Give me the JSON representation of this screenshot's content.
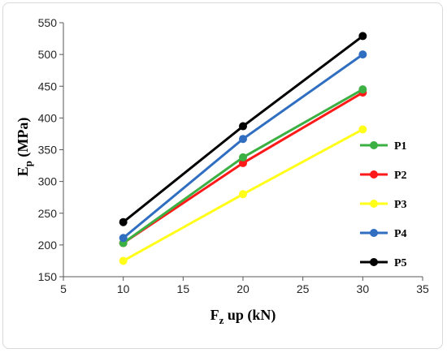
{
  "chart_data": {
    "type": "line",
    "x": [
      10,
      20,
      30
    ],
    "xlabel": {
      "main": "F",
      "sub": "z",
      "rest": " up (kN)"
    },
    "ylabel": {
      "main": "E",
      "sub": "p",
      "rest": " (MPa)"
    },
    "xlim": [
      5,
      35
    ],
    "ylim": [
      150,
      550
    ],
    "xticks": [
      5,
      10,
      15,
      20,
      25,
      30,
      35
    ],
    "yticks": [
      150,
      200,
      250,
      300,
      350,
      400,
      450,
      500,
      550
    ],
    "grid": false,
    "legend_position": "right",
    "series": [
      {
        "name": "P1",
        "color": "#3cb043",
        "values": [
          203,
          338,
          445
        ]
      },
      {
        "name": "P2",
        "color": "#ff1a1a",
        "values": [
          203,
          329,
          440
        ]
      },
      {
        "name": "P3",
        "color": "#ffff1a",
        "values": [
          175,
          280,
          382
        ]
      },
      {
        "name": "P4",
        "color": "#2f6ec0",
        "values": [
          211,
          367,
          500
        ]
      },
      {
        "name": "P5",
        "color": "#000000",
        "values": [
          236,
          387,
          529
        ]
      }
    ],
    "draw_order": [
      1,
      0,
      3,
      4,
      2
    ]
  }
}
